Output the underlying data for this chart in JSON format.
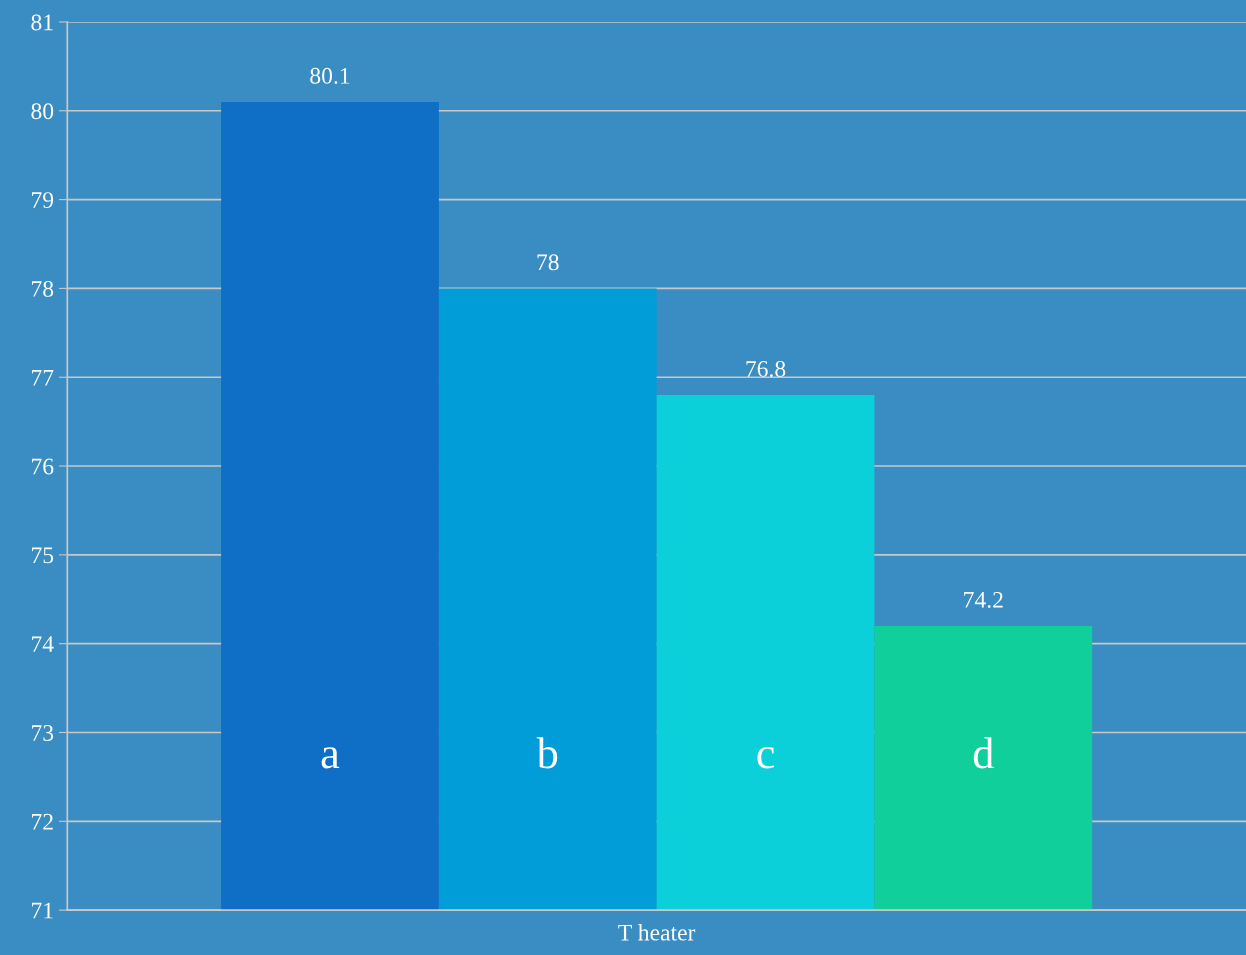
{
  "chart_data": {
    "type": "bar",
    "categories": [
      "T heater"
    ],
    "series": [
      {
        "name": "a",
        "color": "#0f6fc6",
        "values": [
          80.1
        ]
      },
      {
        "name": "b",
        "color": "#009dd9",
        "values": [
          78
        ]
      },
      {
        "name": "c",
        "color": "#0bd0d9",
        "values": [
          76.8
        ]
      },
      {
        "name": "d",
        "color": "#10cf9b",
        "values": [
          74.2
        ]
      }
    ],
    "ylim": [
      71,
      81
    ],
    "yticks": [
      71,
      72,
      73,
      74,
      75,
      76,
      77,
      78,
      79,
      80,
      81
    ],
    "grid": "y",
    "legend": false,
    "data_labels": true
  }
}
